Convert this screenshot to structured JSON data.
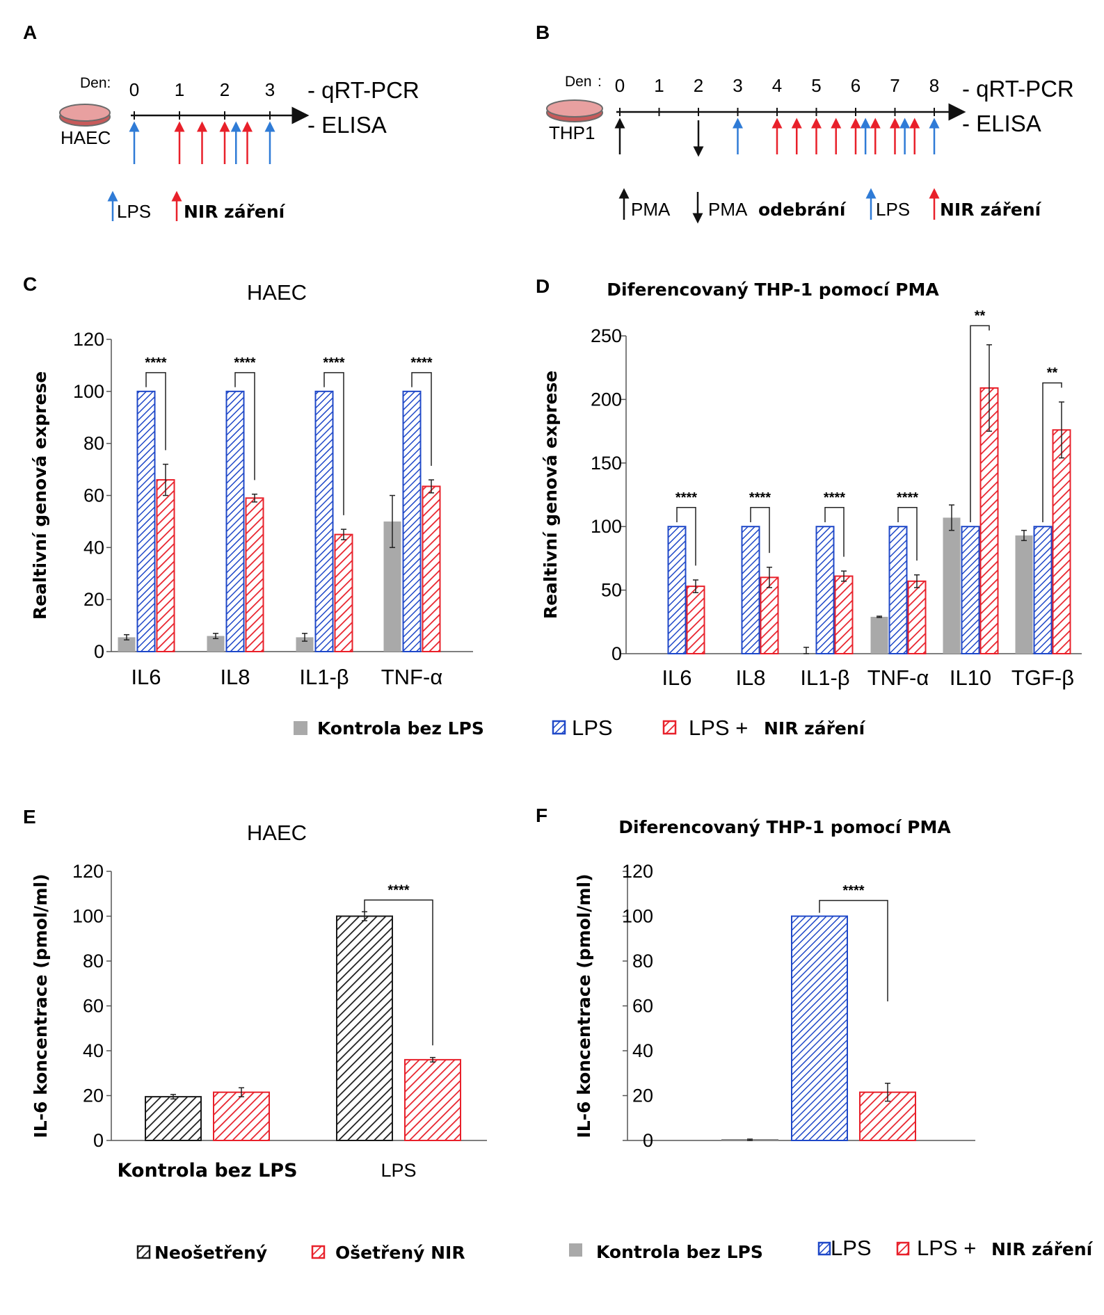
{
  "colors": {
    "gray": "#a9a9a9",
    "blue": "#1f48c8",
    "red": "#e8202a",
    "black": "#1a1a1a",
    "arrow_blue": "#2f7bd6"
  },
  "panel_a": {
    "letter": "A",
    "den_label": "Den:",
    "days": [
      "0",
      "1",
      "2",
      "3"
    ],
    "cell": "HAEC",
    "readouts": [
      "- qRT-PCR",
      "- ELISA"
    ],
    "legend_lps": "LPS",
    "legend_nir": "NIR záření",
    "events": [
      {
        "day": 0,
        "type": "lps"
      },
      {
        "day": 1,
        "type": "nir"
      },
      {
        "day": 1.5,
        "type": "nir"
      },
      {
        "day": 2,
        "type": "nir"
      },
      {
        "day": 2.25,
        "type": "lps"
      },
      {
        "day": 2.5,
        "type": "nir"
      },
      {
        "day": 3,
        "type": "lps"
      }
    ]
  },
  "panel_b": {
    "letter": "B",
    "den_label": "Den",
    "colon": ":",
    "days": [
      "0",
      "1",
      "2",
      "3",
      "4",
      "5",
      "6",
      "7",
      "8"
    ],
    "cell": "THP1",
    "readouts": [
      "- qRT-PCR",
      "- ELISA"
    ],
    "legend_pma": "PMA",
    "legend_pma_removal_prefix": "PMA",
    "legend_pma_removal_bold": "odebrání",
    "legend_lps": "LPS",
    "legend_nir": "NIR záření",
    "events": [
      {
        "day": 0,
        "type": "pma"
      },
      {
        "day": 2,
        "type": "pma_remove"
      },
      {
        "day": 3,
        "type": "lps"
      },
      {
        "day": 4,
        "type": "nir"
      },
      {
        "day": 4.5,
        "type": "nir"
      },
      {
        "day": 5,
        "type": "nir"
      },
      {
        "day": 5.5,
        "type": "nir"
      },
      {
        "day": 6,
        "type": "nir"
      },
      {
        "day": 6.25,
        "type": "lps"
      },
      {
        "day": 6.5,
        "type": "nir"
      },
      {
        "day": 7,
        "type": "nir"
      },
      {
        "day": 7.25,
        "type": "lps"
      },
      {
        "day": 7.5,
        "type": "nir"
      },
      {
        "day": 8,
        "type": "lps"
      }
    ]
  },
  "legend_cd": {
    "control": "Kontrola bez LPS",
    "lps": "LPS",
    "lps_nir_prefix": "LPS +",
    "lps_nir_bold": "NIR záření"
  },
  "legend_e": {
    "untreated": "Neošetřený",
    "treated": "Ošetřený NIR"
  },
  "legend_f": {
    "control": "Kontrola bez LPS",
    "lps": "LPS",
    "lps_nir_prefix": "LPS +",
    "lps_nir_bold": "NIR záření"
  },
  "chart_data": [
    {
      "id": "C",
      "letter": "C",
      "type": "bar",
      "title": "HAEC",
      "ylabel": "Realtivní genová exprese",
      "ylim": [
        0,
        120
      ],
      "yticks": [
        0,
        20,
        40,
        60,
        80,
        100,
        120
      ],
      "categories": [
        "IL6",
        "IL8",
        "IL1-β",
        "TNF-α"
      ],
      "series": [
        {
          "name": "Kontrola bez LPS",
          "style": "gray",
          "values": [
            5.5,
            6,
            5.5,
            50
          ],
          "errors": [
            1,
            1,
            1.5,
            10
          ]
        },
        {
          "name": "LPS",
          "style": "blue",
          "values": [
            100,
            100,
            100,
            100
          ],
          "errors": [
            0,
            0,
            0,
            0
          ]
        },
        {
          "name": "LPS + NIR záření",
          "style": "red",
          "values": [
            66,
            59,
            45,
            63.5
          ],
          "errors": [
            6,
            1.5,
            2,
            2.5
          ]
        }
      ],
      "significance": [
        "****",
        "****",
        "****",
        "****"
      ]
    },
    {
      "id": "D",
      "letter": "D",
      "type": "bar",
      "title": "Diferencovaný THP-1  pomocí PMA",
      "ylabel": "Realtivní genová exprese",
      "ylim": [
        0,
        250
      ],
      "yticks": [
        0,
        50,
        100,
        150,
        200,
        250
      ],
      "categories": [
        "IL6",
        "IL8",
        "IL1-β",
        "TNF-α",
        "IL10",
        "TGF-β"
      ],
      "series": [
        {
          "name": "Kontrola bez LPS",
          "style": "gray",
          "values": [
            0,
            0,
            0,
            29,
            107,
            93
          ],
          "errors": [
            0,
            0,
            5,
            0.5,
            10,
            4
          ]
        },
        {
          "name": "LPS",
          "style": "blue",
          "values": [
            100,
            100,
            100,
            100,
            100,
            100
          ],
          "errors": [
            0,
            0,
            0,
            0,
            0,
            0
          ]
        },
        {
          "name": "LPS + NIR záření",
          "style": "red",
          "values": [
            53,
            60,
            61,
            57,
            209,
            176
          ],
          "errors": [
            5,
            8,
            4,
            5,
            34,
            22
          ]
        }
      ],
      "significance": [
        "****",
        "****",
        "****",
        "****",
        "**",
        "**"
      ]
    },
    {
      "id": "E",
      "letter": "E",
      "type": "bar",
      "title": "HAEC",
      "ylabel": "IL-6 koncentrace (pmol/ml)",
      "ylim": [
        0,
        120
      ],
      "yticks": [
        0,
        20,
        40,
        60,
        80,
        100,
        120
      ],
      "categories": [
        "Kontrola bez LPS",
        "LPS"
      ],
      "series": [
        {
          "name": "Neošetřený",
          "style": "black",
          "values": [
            19.5,
            100
          ],
          "errors": [
            1,
            2
          ]
        },
        {
          "name": "Ošetřený NIR",
          "style": "red",
          "values": [
            21.5,
            36
          ],
          "errors": [
            2,
            1
          ]
        }
      ],
      "significance": [
        "",
        "****"
      ]
    },
    {
      "id": "F",
      "letter": "F",
      "type": "bar",
      "title": "Diferencovaný THP-1  pomocí PMA",
      "ylabel": "IL-6 koncentrace (pmol/ml)",
      "ylim": [
        0,
        120
      ],
      "yticks": [
        0,
        20,
        40,
        60,
        80,
        100,
        120
      ],
      "categories": [
        "Kontrola bez LPS",
        "LPS",
        "LPS + NIR záření"
      ],
      "series": [
        {
          "name": "IL-6",
          "styles": [
            "gray",
            "blue",
            "red"
          ],
          "values": [
            0.3,
            100,
            21.5
          ],
          "errors": [
            0.3,
            0,
            4
          ]
        }
      ],
      "significance": [
        "****"
      ]
    }
  ]
}
